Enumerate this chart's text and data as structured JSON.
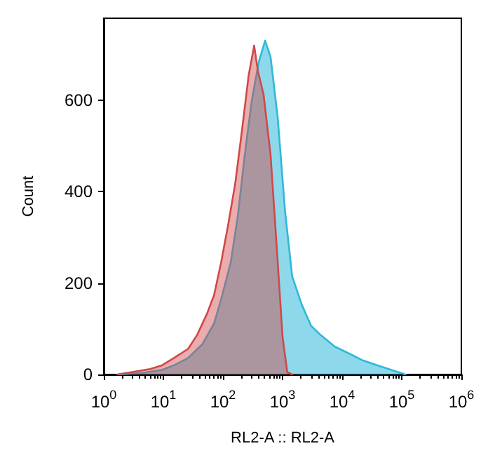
{
  "chart_data": {
    "type": "area",
    "xlabel": "RL2-A :: RL2-A",
    "ylabel": "Count",
    "log": "x",
    "xlim": [
      1,
      1000000
    ],
    "ylim": [
      0,
      780
    ],
    "xticks": [
      {
        "value": 1,
        "label": "10$^{0}$"
      },
      {
        "value": 10,
        "label": "10$^{1}$"
      },
      {
        "value": 100,
        "label": "10$^{2}$"
      },
      {
        "value": 1000,
        "label": "10$^{3}$"
      },
      {
        "value": 10000,
        "label": "10$^{4}$"
      },
      {
        "value": 100000,
        "label": "10$^{5}$"
      },
      {
        "value": 1000000,
        "label": "10$^{6}$"
      }
    ],
    "yticks": [
      0,
      200,
      400,
      600
    ],
    "series": [
      {
        "color": "#30b8d8",
        "x": [
          1.7,
          4.2,
          9.5,
          15,
          26,
          45,
          71,
          93,
          135,
          178,
          232,
          303,
          400,
          510,
          630,
          830,
          1100,
          1450,
          2100,
          3000,
          4300,
          7500,
          13000,
          22000,
          39000,
          67000,
          115000
        ],
        "values": [
          0,
          3,
          10,
          20,
          36,
          66,
          112,
          164,
          245,
          348,
          480,
          598,
          685,
          731,
          695,
          562,
          358,
          215,
          153,
          107,
          87,
          61,
          46,
          31,
          20,
          10,
          0
        ]
      },
      {
        "color": "#d04848",
        "x": [
          1.7,
          2.9,
          6,
          9.5,
          15,
          26,
          37,
          54,
          71,
          93,
          122,
          161,
          212,
          269,
          334,
          386,
          480,
          630,
          830,
          1000,
          1200,
          1450
        ],
        "values": [
          0,
          5,
          12,
          20,
          36,
          56,
          87,
          133,
          174,
          245,
          327,
          419,
          542,
          654,
          720,
          664,
          613,
          480,
          245,
          82,
          5,
          0
        ]
      }
    ]
  }
}
